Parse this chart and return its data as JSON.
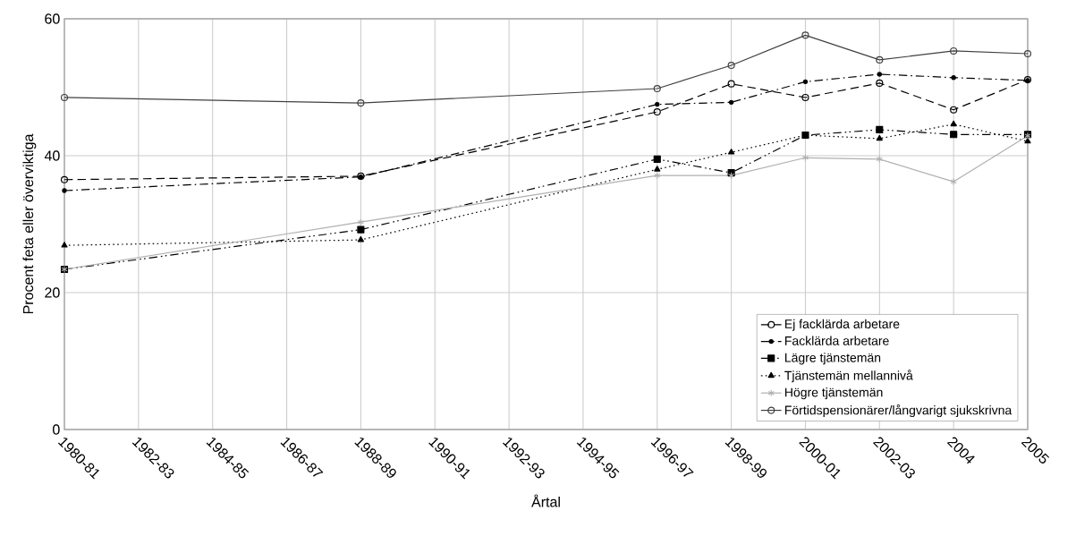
{
  "chart_data": {
    "type": "line",
    "xlabel": "Årtal",
    "ylabel": "Procent feta eller överviktiga",
    "categories": [
      "1980-81",
      "1982-83",
      "1984-85",
      "1986-87",
      "1988-89",
      "1990-91",
      "1992-93",
      "1994-95",
      "1996-97",
      "1998-99",
      "2000-01",
      "2002-03",
      "2004",
      "2005"
    ],
    "series": [
      {
        "name": "Ej facklärda arbetare",
        "color": "#000000",
        "line_style": "dashed",
        "marker": "circle",
        "values": [
          36.5,
          null,
          null,
          null,
          37.0,
          null,
          null,
          null,
          46.4,
          50.5,
          48.5,
          50.6,
          46.7,
          51.1
        ]
      },
      {
        "name": "Facklärda arbetare",
        "color": "#000000",
        "line_style": "dashdot",
        "marker": "dot",
        "values": [
          34.9,
          null,
          null,
          null,
          36.9,
          null,
          null,
          null,
          47.5,
          47.8,
          50.8,
          51.9,
          51.4,
          51.0
        ]
      },
      {
        "name": "Lägre tjänstemän",
        "color": "#000000",
        "line_style": "dashdotdot",
        "marker": "square",
        "values": [
          23.4,
          null,
          null,
          null,
          29.2,
          null,
          null,
          null,
          39.5,
          37.5,
          43.0,
          43.8,
          43.1,
          43.1
        ]
      },
      {
        "name": "Tjänstemän mellannivå",
        "color": "#000000",
        "line_style": "dotted",
        "marker": "triangle",
        "values": [
          26.9,
          null,
          null,
          null,
          27.7,
          null,
          null,
          null,
          38.0,
          40.5,
          43.0,
          42.5,
          44.6,
          42.1
        ]
      },
      {
        "name": "Högre tjänstemän",
        "color": "#b0b0b0",
        "line_style": "solid",
        "marker": "cross",
        "values": [
          23.4,
          null,
          null,
          null,
          30.3,
          null,
          null,
          null,
          37.1,
          37.1,
          39.7,
          39.5,
          36.2,
          42.9
        ]
      },
      {
        "name": "Förtidspensionärer/långvarigt sjukskrivna",
        "color": "#404040",
        "line_style": "solid",
        "marker": "circle",
        "values": [
          48.5,
          null,
          null,
          null,
          47.7,
          null,
          null,
          null,
          49.8,
          53.2,
          57.6,
          54.0,
          55.3,
          54.9
        ]
      }
    ],
    "ylim": [
      0,
      60
    ],
    "yticks": [
      0,
      20,
      40,
      60
    ],
    "grid": true,
    "legend": "bottom right"
  }
}
